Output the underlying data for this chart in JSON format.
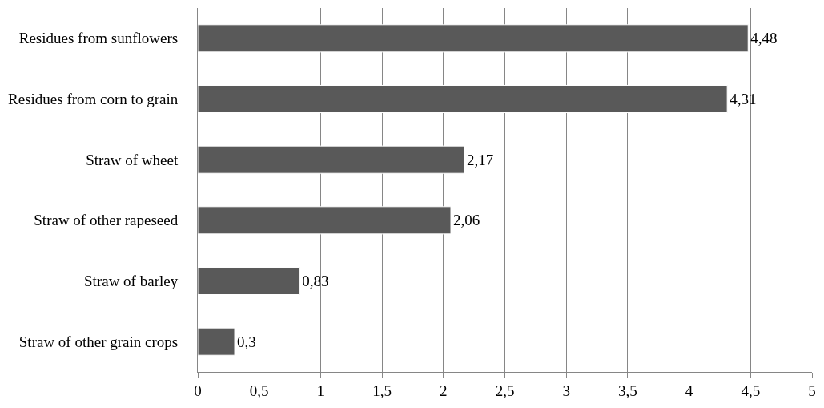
{
  "chart_data": {
    "type": "bar",
    "orientation": "horizontal",
    "categories": [
      "Residues from sunflowers",
      "Residues from corn to grain",
      "Straw of wheet",
      "Straw of other rapeseed",
      "Straw of barley",
      "Straw of other grain crops"
    ],
    "values": [
      4.48,
      4.31,
      2.17,
      2.06,
      0.83,
      0.3
    ],
    "value_labels": [
      "4,48",
      "4,31",
      "2,17",
      "2,06",
      "0,83",
      "0,3"
    ],
    "color": "#595959",
    "xlim": [
      0,
      5
    ],
    "xticks": [
      0,
      {
        "value": 0.5,
        "label": "0,5"
      },
      1,
      {
        "value": 1.5,
        "label": "1,5"
      },
      2,
      {
        "value": 2.5,
        "label": "2,5"
      },
      3,
      {
        "value": 3.5,
        "label": "3,5"
      },
      4,
      {
        "value": 4.5,
        "label": "4,5"
      },
      5
    ],
    "grid": "x"
  }
}
